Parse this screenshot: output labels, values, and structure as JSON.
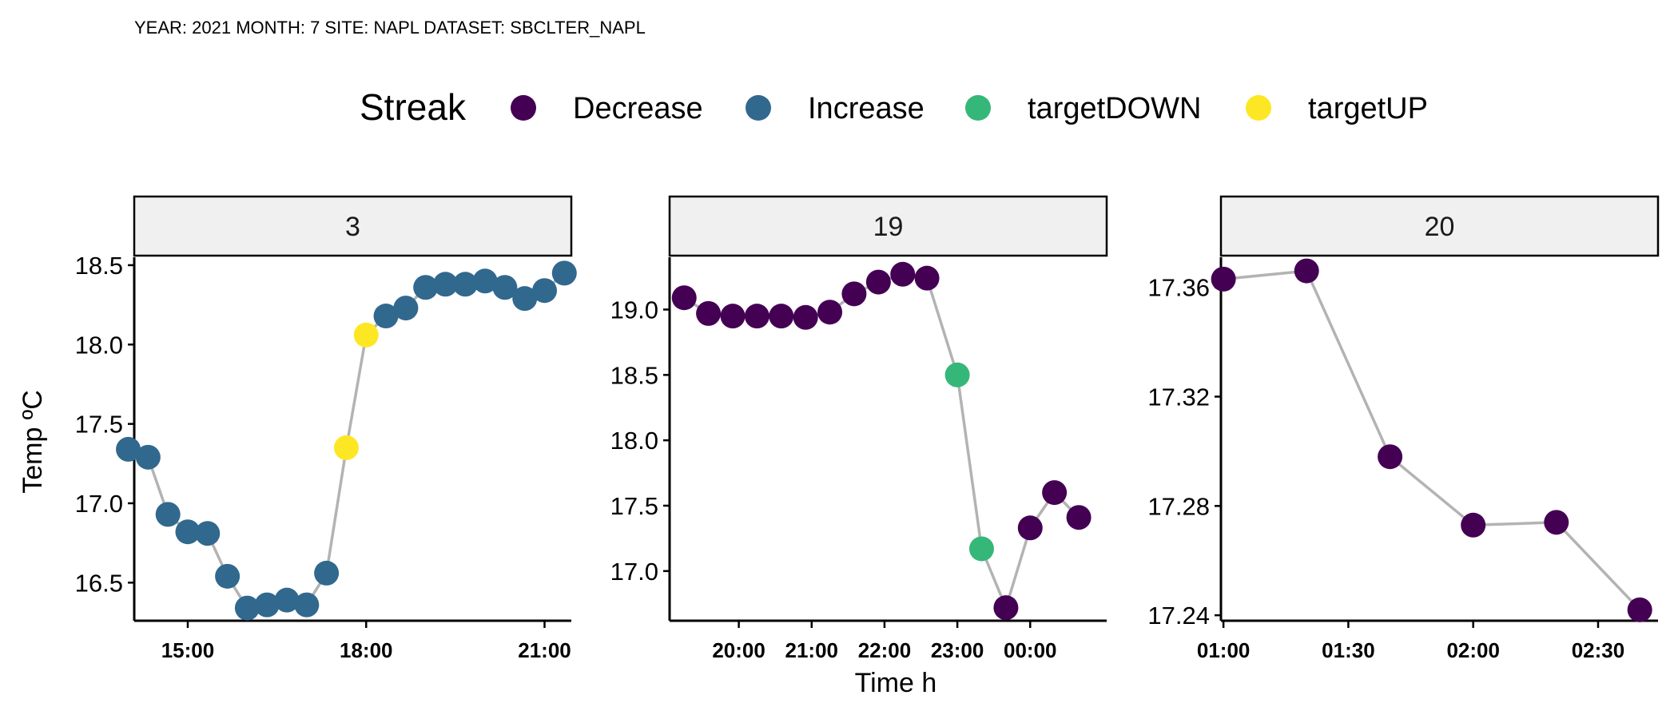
{
  "subtitle": "YEAR: 2021 MONTH: 7 SITE:  NAPL DATASET:  SBCLTER_NAPL",
  "chart_data": {
    "type": "scatter",
    "xlabel": "Time h",
    "ylabel": "Temp ºC",
    "legend": {
      "title": "Streak",
      "position": "top",
      "entries": [
        {
          "label": "Decrease",
          "color": "#440154"
        },
        {
          "label": "Increase",
          "color": "#31688E"
        },
        {
          "label": "targetDOWN",
          "color": "#35B779"
        },
        {
          "label": "targetUP",
          "color": "#FDE725"
        }
      ]
    },
    "line_color": "#b3b3b3",
    "grid": false,
    "panels": [
      {
        "label": "3",
        "xlim": [
          14.1,
          21.45
        ],
        "ylim": [
          16.26,
          18.55
        ],
        "xticks": [
          {
            "v": 15,
            "label": "15:00"
          },
          {
            "v": 18,
            "label": "18:00"
          },
          {
            "v": 21,
            "label": "21:00"
          }
        ],
        "yticks": [
          {
            "v": 16.5,
            "label": "16.5"
          },
          {
            "v": 17.0,
            "label": "17.0"
          },
          {
            "v": 17.5,
            "label": "17.5"
          },
          {
            "v": 18.0,
            "label": "18.0"
          },
          {
            "v": 18.5,
            "label": "18.5"
          }
        ],
        "points": [
          {
            "x": 14.0,
            "y": 17.34,
            "streak": "Increase"
          },
          {
            "x": 14.333,
            "y": 17.29,
            "streak": "Increase"
          },
          {
            "x": 14.667,
            "y": 16.93,
            "streak": "Increase"
          },
          {
            "x": 15.0,
            "y": 16.82,
            "streak": "Increase"
          },
          {
            "x": 15.333,
            "y": 16.81,
            "streak": "Increase"
          },
          {
            "x": 15.667,
            "y": 16.54,
            "streak": "Increase"
          },
          {
            "x": 16.0,
            "y": 16.34,
            "streak": "Increase"
          },
          {
            "x": 16.333,
            "y": 16.36,
            "streak": "Increase"
          },
          {
            "x": 16.667,
            "y": 16.39,
            "streak": "Increase"
          },
          {
            "x": 17.0,
            "y": 16.36,
            "streak": "Increase"
          },
          {
            "x": 17.333,
            "y": 16.56,
            "streak": "Increase"
          },
          {
            "x": 17.667,
            "y": 17.35,
            "streak": "targetUP"
          },
          {
            "x": 18.0,
            "y": 18.06,
            "streak": "targetUP"
          },
          {
            "x": 18.333,
            "y": 18.18,
            "streak": "Increase"
          },
          {
            "x": 18.667,
            "y": 18.23,
            "streak": "Increase"
          },
          {
            "x": 19.0,
            "y": 18.36,
            "streak": "Increase"
          },
          {
            "x": 19.333,
            "y": 18.38,
            "streak": "Increase"
          },
          {
            "x": 19.667,
            "y": 18.38,
            "streak": "Increase"
          },
          {
            "x": 20.0,
            "y": 18.4,
            "streak": "Increase"
          },
          {
            "x": 20.333,
            "y": 18.36,
            "streak": "Increase"
          },
          {
            "x": 20.667,
            "y": 18.29,
            "streak": "Increase"
          },
          {
            "x": 21.0,
            "y": 18.34,
            "streak": "Increase"
          },
          {
            "x": 21.333,
            "y": 18.45,
            "streak": "Increase"
          }
        ]
      },
      {
        "label": "19",
        "xlim": [
          19.05,
          25.05
        ],
        "ylim": [
          16.62,
          19.4
        ],
        "xticks": [
          {
            "v": 20,
            "label": "20:00"
          },
          {
            "v": 21,
            "label": "21:00"
          },
          {
            "v": 22,
            "label": "22:00"
          },
          {
            "v": 23,
            "label": "23:00"
          },
          {
            "v": 24,
            "label": "00:00"
          }
        ],
        "yticks": [
          {
            "v": 17.0,
            "label": "17.0"
          },
          {
            "v": 17.5,
            "label": "17.5"
          },
          {
            "v": 18.0,
            "label": "18.0"
          },
          {
            "v": 18.5,
            "label": "18.5"
          },
          {
            "v": 19.0,
            "label": "19.0"
          }
        ],
        "points": [
          {
            "x": 19.25,
            "y": 19.09,
            "streak": "Decrease"
          },
          {
            "x": 19.583,
            "y": 18.97,
            "streak": "Decrease"
          },
          {
            "x": 19.917,
            "y": 18.95,
            "streak": "Decrease"
          },
          {
            "x": 20.25,
            "y": 18.95,
            "streak": "Decrease"
          },
          {
            "x": 20.583,
            "y": 18.95,
            "streak": "Decrease"
          },
          {
            "x": 20.917,
            "y": 18.94,
            "streak": "Decrease"
          },
          {
            "x": 21.25,
            "y": 18.98,
            "streak": "Decrease"
          },
          {
            "x": 21.583,
            "y": 19.12,
            "streak": "Decrease"
          },
          {
            "x": 21.917,
            "y": 19.21,
            "streak": "Decrease"
          },
          {
            "x": 22.25,
            "y": 19.27,
            "streak": "Decrease"
          },
          {
            "x": 22.583,
            "y": 19.24,
            "streak": "Decrease"
          },
          {
            "x": 23.0,
            "y": 18.5,
            "streak": "targetDOWN"
          },
          {
            "x": 23.333,
            "y": 17.17,
            "streak": "targetDOWN"
          },
          {
            "x": 23.667,
            "y": 16.72,
            "streak": "Decrease"
          },
          {
            "x": 24.0,
            "y": 17.33,
            "streak": "Decrease"
          },
          {
            "x": 24.333,
            "y": 17.6,
            "streak": "Decrease"
          },
          {
            "x": 24.667,
            "y": 17.41,
            "streak": "Decrease"
          }
        ]
      },
      {
        "label": "20",
        "xlim": [
          0.99,
          2.74
        ],
        "ylim": [
          17.238,
          17.371
        ],
        "xticks": [
          {
            "v": 1.0,
            "label": "01:00"
          },
          {
            "v": 1.5,
            "label": "01:30"
          },
          {
            "v": 2.0,
            "label": "02:00"
          },
          {
            "v": 2.5,
            "label": "02:30"
          }
        ],
        "yticks": [
          {
            "v": 17.24,
            "label": "17.24"
          },
          {
            "v": 17.28,
            "label": "17.28"
          },
          {
            "v": 17.32,
            "label": "17.32"
          },
          {
            "v": 17.36,
            "label": "17.36"
          }
        ],
        "points": [
          {
            "x": 1.0,
            "y": 17.363,
            "streak": "Decrease"
          },
          {
            "x": 1.333,
            "y": 17.366,
            "streak": "Decrease"
          },
          {
            "x": 1.667,
            "y": 17.298,
            "streak": "Decrease"
          },
          {
            "x": 2.0,
            "y": 17.273,
            "streak": "Decrease"
          },
          {
            "x": 2.333,
            "y": 17.274,
            "streak": "Decrease"
          },
          {
            "x": 2.667,
            "y": 17.242,
            "streak": "Decrease"
          }
        ]
      }
    ]
  }
}
